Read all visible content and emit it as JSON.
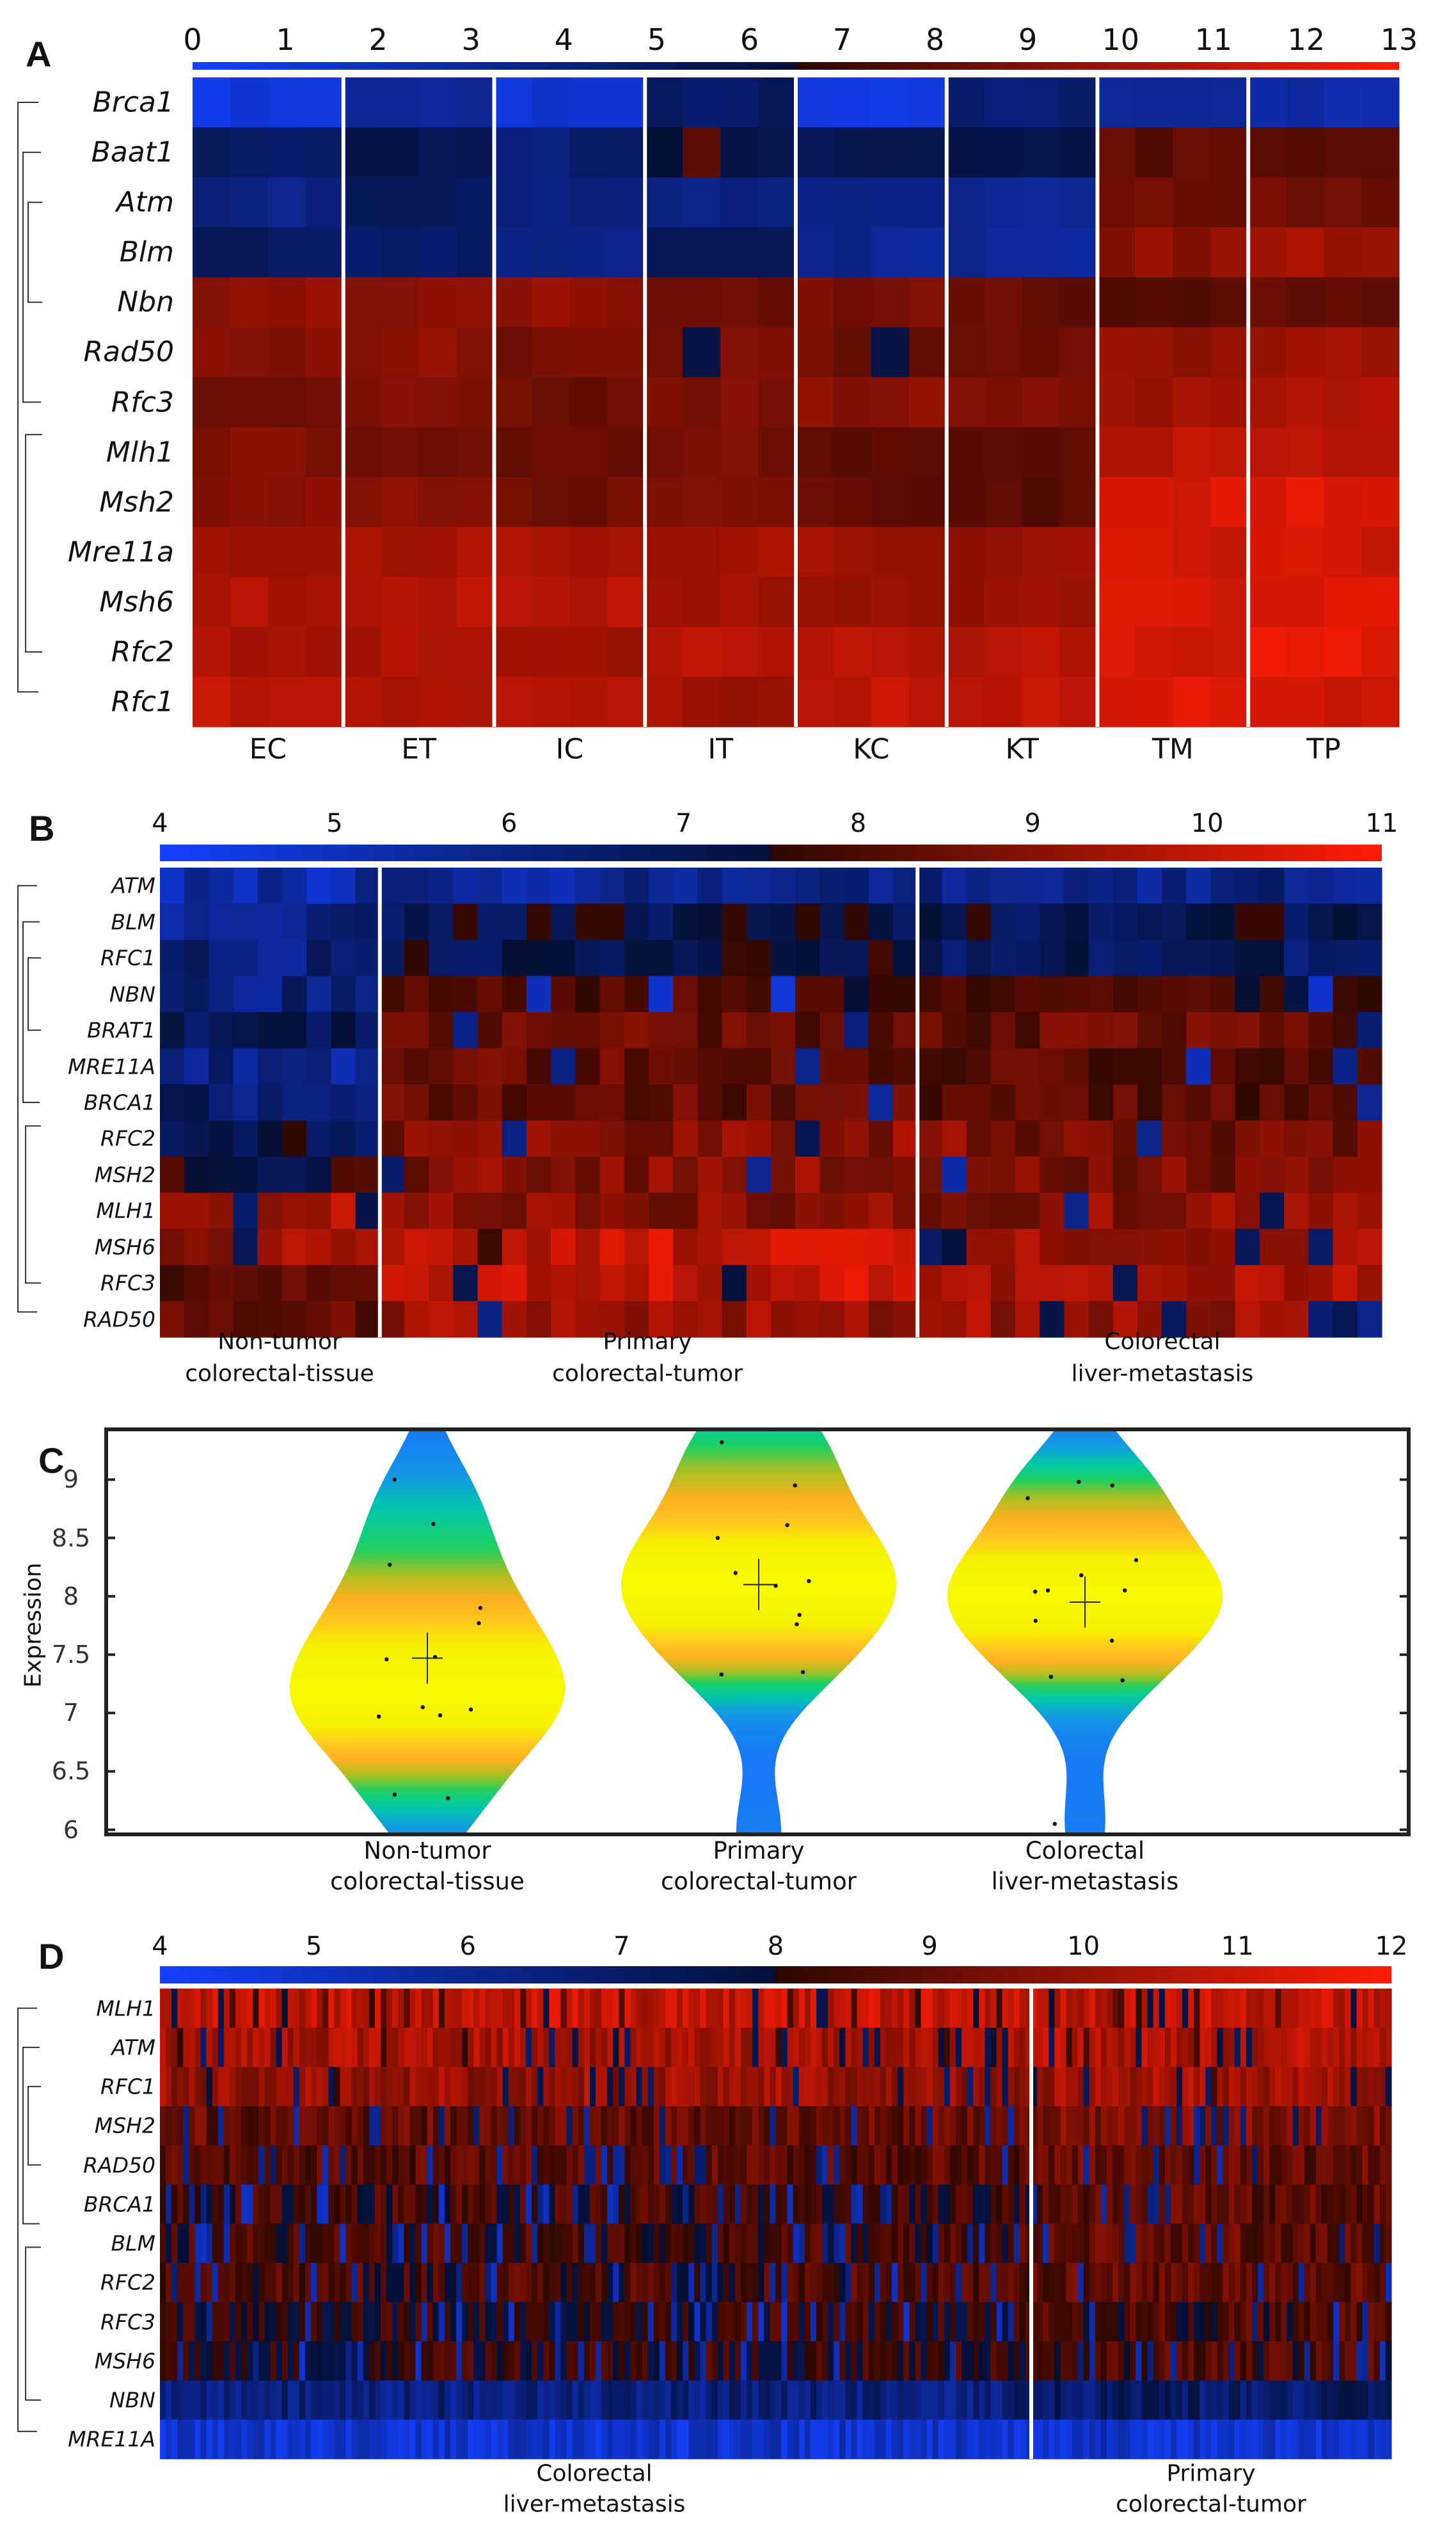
{
  "panels": {
    "A": "A",
    "B": "B",
    "C": "C",
    "D": "D"
  },
  "chart_data": [
    {
      "type": "heatmap",
      "panel": "A",
      "colorbar": {
        "min": 0,
        "max": 13,
        "ticks": [
          "0",
          "1",
          "2",
          "3",
          "4",
          "5",
          "6",
          "7",
          "8",
          "9",
          "10",
          "11",
          "12",
          "13"
        ]
      },
      "rows": [
        "Brca1",
        "Baat1",
        "Atm",
        "Blm",
        "Nbn",
        "Rad50",
        "Rfc3",
        "Mlh1",
        "Msh2",
        "Mre11a",
        "Msh6",
        "Rfc2",
        "Rfc1"
      ],
      "groups": [
        "EC",
        "ET",
        "IC",
        "IT",
        "KC",
        "KT",
        "TM",
        "TP"
      ],
      "columns_per_group": [
        4,
        4,
        4,
        4,
        4,
        4,
        4,
        4
      ],
      "spread": 0.45,
      "dip_probability": 0,
      "group_means": [
        [
          1.0,
          3.5,
          1.5,
          5.0,
          1.0,
          4.5,
          3.0,
          3.0
        ],
        [
          5.0,
          5.5,
          4.5,
          6.0,
          5.5,
          5.5,
          8.0,
          8.0
        ],
        [
          4.0,
          5.0,
          4.0,
          4.0,
          3.5,
          3.5,
          8.5,
          8.5
        ],
        [
          5.0,
          5.0,
          4.0,
          5.5,
          3.5,
          3.5,
          9.5,
          10.0
        ],
        [
          9.5,
          9.2,
          9.5,
          8.5,
          8.8,
          8.3,
          8.0,
          8.2
        ],
        [
          9.0,
          9.3,
          8.8,
          8.8,
          8.5,
          8.5,
          9.8,
          9.8
        ],
        [
          8.8,
          9.2,
          8.5,
          9.0,
          9.3,
          9.3,
          10.0,
          10.3
        ],
        [
          9.2,
          8.8,
          8.2,
          8.8,
          8.2,
          8.0,
          10.8,
          11.0
        ],
        [
          9.2,
          9.5,
          8.5,
          8.8,
          8.2,
          7.8,
          11.8,
          12.0
        ],
        [
          10.2,
          10.3,
          10.3,
          10.3,
          10.0,
          9.8,
          11.5,
          11.5
        ],
        [
          10.5,
          10.8,
          10.8,
          10.2,
          10.0,
          9.7,
          11.6,
          11.8
        ],
        [
          10.3,
          10.5,
          9.8,
          10.8,
          10.8,
          10.8,
          11.8,
          12.3
        ],
        [
          11.0,
          10.5,
          10.5,
          10.0,
          11.0,
          11.0,
          11.8,
          11.5
        ]
      ],
      "outliers": [
        {
          "row": 1,
          "group": 3,
          "col": 1,
          "value": 8.0
        },
        {
          "row": 5,
          "group": 3,
          "col": 1,
          "value": 6.0
        },
        {
          "row": 5,
          "group": 4,
          "col": 2,
          "value": 6.0
        }
      ]
    },
    {
      "type": "heatmap",
      "panel": "B",
      "colorbar": {
        "min": 4,
        "max": 11,
        "ticks": [
          "4",
          "5",
          "6",
          "7",
          "8",
          "9",
          "10",
          "11"
        ]
      },
      "rows": [
        "ATM",
        "BLM",
        "RFC1",
        "NBN",
        "BRAT1",
        "MRE11A",
        "BRCA1",
        "RFC2",
        "MSH2",
        "MLH1",
        "MSH6",
        "RFC3",
        "RAD50"
      ],
      "groups": [
        "Non-tumor colorectal-tissue",
        "Primary colorectal-tumor",
        "Colorectal liver-metastasis"
      ],
      "group_labels": [
        [
          "Non-tumor",
          "colorectal-tissue"
        ],
        [
          "Primary",
          "colorectal-tumor"
        ],
        [
          "Colorectal",
          "liver-metastasis"
        ]
      ],
      "columns_per_group": [
        9,
        22,
        19
      ],
      "spread": 0.7,
      "dip_probability": 0.07,
      "group_means": [
        [
          5.5,
          5.8,
          6.0
        ],
        [
          6.0,
          7.0,
          7.0
        ],
        [
          6.3,
          7.2,
          6.8
        ],
        [
          6.3,
          8.0,
          7.8
        ],
        [
          7.0,
          8.5,
          8.5
        ],
        [
          6.0,
          8.6,
          8.3
        ],
        [
          6.5,
          8.4,
          8.0
        ],
        [
          7.0,
          9.0,
          8.8
        ],
        [
          7.5,
          9.0,
          8.6
        ],
        [
          9.6,
          9.0,
          9.0
        ],
        [
          9.2,
          10.0,
          9.5
        ],
        [
          8.0,
          10.0,
          9.6
        ],
        [
          8.5,
          9.3,
          9.3
        ]
      ]
    },
    {
      "type": "violin",
      "panel": "C",
      "ylabel": "Expression",
      "ylim": [
        5.96,
        9.43
      ],
      "yticks": [
        "6",
        "6.5",
        "7",
        "7.5",
        "8",
        "8.5",
        "9"
      ],
      "categories": [
        [
          "Non-tumor",
          "colorectal-tissue"
        ],
        [
          "Primary",
          "colorectal-tumor"
        ],
        [
          "Colorectal",
          "liver-metastasis"
        ]
      ],
      "points": [
        [
          9.0,
          8.62,
          8.27,
          7.9,
          7.77,
          7.48,
          7.46,
          7.05,
          7.03,
          6.98,
          6.97,
          6.3,
          6.27
        ],
        [
          9.43,
          9.32,
          8.95,
          8.61,
          8.5,
          8.2,
          8.13,
          8.09,
          7.84,
          7.76,
          7.35,
          7.33,
          5.96
        ],
        [
          8.98,
          8.95,
          8.84,
          8.31,
          8.18,
          8.05,
          8.05,
          8.04,
          7.79,
          7.62,
          7.31,
          7.28,
          6.05
        ]
      ],
      "means": [
        7.47,
        8.1,
        7.95
      ]
    },
    {
      "type": "heatmap",
      "panel": "D",
      "colorbar": {
        "min": 4,
        "max": 12,
        "ticks": [
          "4",
          "5",
          "6",
          "7",
          "8",
          "9",
          "10",
          "11",
          "12"
        ]
      },
      "rows": [
        "MLH1",
        "ATM",
        "RFC1",
        "MSH2",
        "RAD50",
        "BRCA1",
        "BLM",
        "RFC2",
        "RFC3",
        "MSH6",
        "NBN",
        "MRE11A"
      ],
      "groups": [
        "Colorectal liver-metastasis",
        "Primary colorectal-tumor"
      ],
      "group_labels": [
        [
          "Colorectal",
          "liver-metastasis"
        ],
        [
          "Primary",
          "colorectal-tumor"
        ]
      ],
      "columns_per_group": [
        150,
        62
      ],
      "spread": 0.8,
      "dip_probability": 0.14,
      "group_means": [
        [
          10.8,
          10.8
        ],
        [
          10.3,
          10.5
        ],
        [
          10.0,
          10.2
        ],
        [
          9.0,
          9.5
        ],
        [
          8.8,
          9.0
        ],
        [
          8.5,
          8.9
        ],
        [
          8.5,
          8.9
        ],
        [
          8.6,
          8.9
        ],
        [
          8.2,
          8.6
        ],
        [
          8.2,
          8.6
        ],
        [
          6.6,
          7.0
        ],
        [
          5.0,
          5.0
        ]
      ]
    }
  ]
}
